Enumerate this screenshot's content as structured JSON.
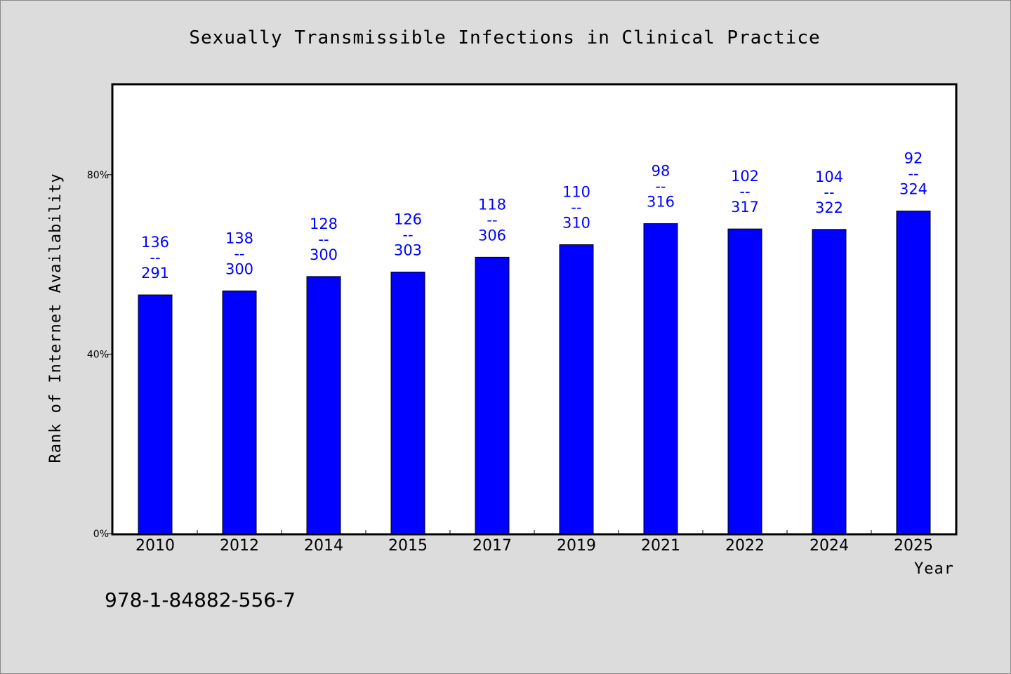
{
  "chart_data": {
    "type": "bar",
    "title": "Sexually Transmissible Infections in Clinical Practice",
    "xlabel": "Year",
    "ylabel": "Rank of Internet Availability",
    "categories": [
      "2010",
      "2012",
      "2014",
      "2015",
      "2017",
      "2019",
      "2021",
      "2022",
      "2024",
      "2025"
    ],
    "values": [
      53.2,
      54.1,
      57.3,
      58.3,
      61.6,
      64.4,
      69.1,
      67.9,
      67.8,
      71.9
    ],
    "data_labels": [
      [
        "136",
        "--",
        "291"
      ],
      [
        "138",
        "--",
        "300"
      ],
      [
        "128",
        "--",
        "300"
      ],
      [
        "126",
        "--",
        "303"
      ],
      [
        "118",
        "--",
        "306"
      ],
      [
        "110",
        "--",
        "310"
      ],
      [
        "98",
        "--",
        "316"
      ],
      [
        "102",
        "--",
        "317"
      ],
      [
        "104",
        "--",
        "322"
      ],
      [
        "92",
        "--",
        "324"
      ]
    ],
    "yticks": [
      "0%",
      "40%",
      "80%"
    ],
    "ytick_values": [
      0,
      40,
      80
    ],
    "ylim": [
      0,
      100
    ],
    "grid": false,
    "legend": "none",
    "colors": {
      "bar": "#0000ff",
      "label": "#0000ff",
      "background": "#dcdcdc",
      "plot_background": "#ffffff"
    }
  },
  "footer_text": "978-1-84882-556-7"
}
